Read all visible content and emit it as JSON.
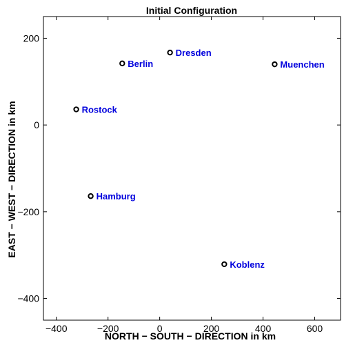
{
  "chart_data": {
    "type": "scatter",
    "title": "Initial Configuration",
    "xlabel": "NORTH − SOUTH − DIRECTION in km",
    "ylabel": "EAST − WEST − DIRECTION in km",
    "xlim": [
      -450,
      700
    ],
    "ylim": [
      -450,
      250
    ],
    "xticks": [
      -400,
      -200,
      0,
      200,
      400,
      600
    ],
    "xtick_labels": [
      "−400",
      "−200",
      "0",
      "200",
      "400",
      "600"
    ],
    "yticks": [
      -400,
      -200,
      0,
      200
    ],
    "ytick_labels": [
      "−400",
      "−200",
      "0",
      "200"
    ],
    "grid": false,
    "label_color": "#0000dd",
    "marker_color": "#000000",
    "points": [
      {
        "label": "Dresden",
        "x": 40,
        "y": 167
      },
      {
        "label": "Berlin",
        "x": -145,
        "y": 142
      },
      {
        "label": "Muenchen",
        "x": 445,
        "y": 140
      },
      {
        "label": "Rostock",
        "x": -323,
        "y": 36
      },
      {
        "label": "Hamburg",
        "x": -267,
        "y": -164
      },
      {
        "label": "Koblenz",
        "x": 250,
        "y": -321
      }
    ]
  }
}
